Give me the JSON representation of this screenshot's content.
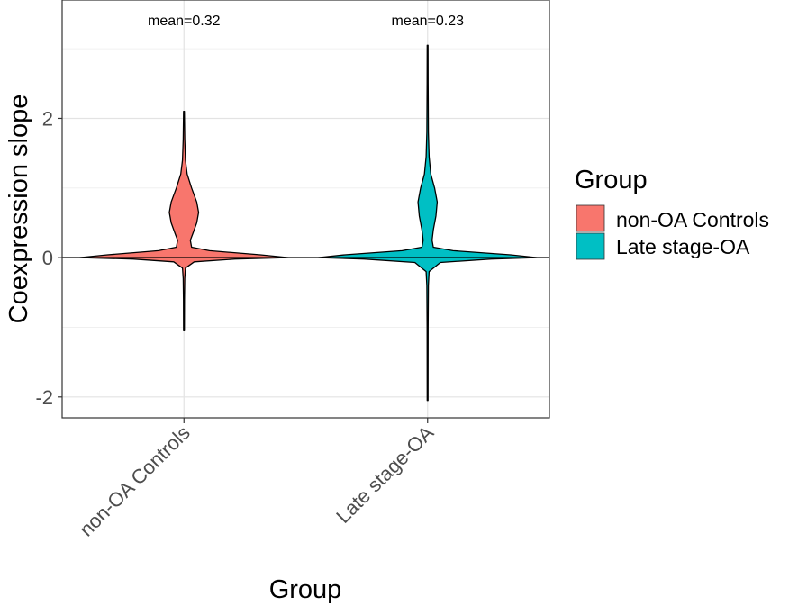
{
  "chart_data": {
    "type": "violin",
    "title": "",
    "xlabel": "Group",
    "ylabel": "Coexpression slope",
    "ylim": [
      -2.3,
      3.7
    ],
    "yticks": [
      -2,
      0,
      2
    ],
    "ytick_labels": [
      "-2",
      "0",
      "2"
    ],
    "grid": true,
    "categories": [
      "non-OA Controls",
      "Late stage-OA"
    ],
    "series": [
      {
        "name": "non-OA Controls",
        "color": "#F8766D",
        "min": -1.05,
        "max": 2.1,
        "mean_label": "mean=0.32",
        "density": [
          [
            -1.05,
            0.003
          ],
          [
            -0.6,
            0.004
          ],
          [
            -0.3,
            0.006
          ],
          [
            -0.15,
            0.012
          ],
          [
            -0.06,
            0.08
          ],
          [
            -0.02,
            0.4
          ],
          [
            0.0,
            0.82
          ],
          [
            0.04,
            0.6
          ],
          [
            0.1,
            0.2
          ],
          [
            0.15,
            0.06
          ],
          [
            0.25,
            0.05
          ],
          [
            0.35,
            0.07
          ],
          [
            0.5,
            0.1
          ],
          [
            0.65,
            0.115
          ],
          [
            0.8,
            0.1
          ],
          [
            1.0,
            0.06
          ],
          [
            1.2,
            0.025
          ],
          [
            1.4,
            0.012
          ],
          [
            1.7,
            0.006
          ],
          [
            2.1,
            0.003
          ]
        ]
      },
      {
        "name": "Late stage-OA",
        "color": "#00BFC4",
        "min": -2.05,
        "max": 3.05,
        "mean_label": "mean=0.23",
        "density": [
          [
            -2.05,
            0.003
          ],
          [
            -1.0,
            0.004
          ],
          [
            -0.4,
            0.006
          ],
          [
            -0.2,
            0.012
          ],
          [
            -0.07,
            0.1
          ],
          [
            -0.02,
            0.5
          ],
          [
            0.0,
            0.86
          ],
          [
            0.04,
            0.65
          ],
          [
            0.1,
            0.2
          ],
          [
            0.15,
            0.045
          ],
          [
            0.25,
            0.035
          ],
          [
            0.4,
            0.045
          ],
          [
            0.6,
            0.065
          ],
          [
            0.8,
            0.075
          ],
          [
            1.0,
            0.055
          ],
          [
            1.2,
            0.025
          ],
          [
            1.45,
            0.012
          ],
          [
            1.8,
            0.006
          ],
          [
            2.5,
            0.004
          ],
          [
            3.05,
            0.003
          ]
        ]
      }
    ],
    "hline": 0,
    "legend": {
      "title": "Group",
      "position": "right",
      "entries": [
        "non-OA Controls",
        "Late stage-OA"
      ]
    }
  }
}
